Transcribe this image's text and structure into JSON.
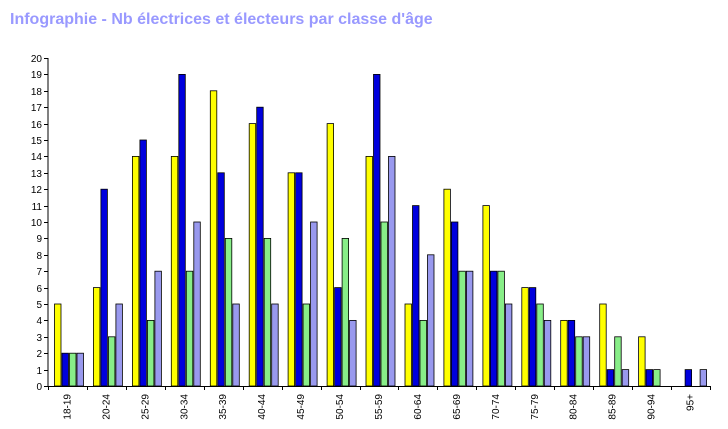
{
  "title": "Infographie - Nb électrices et électeurs par classe d'âge",
  "chart_data": {
    "type": "bar",
    "title": "Infographie - Nb électrices et électeurs par classe d'âge",
    "xlabel": "",
    "ylabel": "",
    "ylim": [
      0,
      20
    ],
    "yticks": [
      0,
      1,
      2,
      3,
      4,
      5,
      6,
      7,
      8,
      9,
      10,
      11,
      12,
      13,
      14,
      15,
      16,
      17,
      18,
      19,
      20
    ],
    "grid": false,
    "legend": "none",
    "categories": [
      "18-19",
      "20-24",
      "25-29",
      "30-34",
      "35-39",
      "40-44",
      "45-49",
      "50-54",
      "55-59",
      "60-64",
      "65-69",
      "70-74",
      "75-79",
      "80-84",
      "85-89",
      "90-94",
      "95+"
    ],
    "series": [
      {
        "color": "#ffff00",
        "values": [
          5,
          6,
          14,
          14,
          18,
          16,
          13,
          16,
          14,
          5,
          12,
          11,
          6,
          4,
          5,
          3,
          0
        ]
      },
      {
        "color": "#0000dd",
        "values": [
          2,
          12,
          15,
          19,
          13,
          17,
          13,
          6,
          19,
          11,
          10,
          7,
          6,
          4,
          1,
          1,
          1
        ]
      },
      {
        "color": "#88ee88",
        "values": [
          2,
          3,
          4,
          7,
          9,
          9,
          5,
          9,
          10,
          4,
          7,
          7,
          5,
          3,
          3,
          1,
          0
        ]
      },
      {
        "color": "#9999ee",
        "values": [
          2,
          5,
          7,
          10,
          5,
          5,
          10,
          4,
          14,
          8,
          7,
          5,
          4,
          3,
          1,
          0,
          1
        ]
      }
    ]
  }
}
